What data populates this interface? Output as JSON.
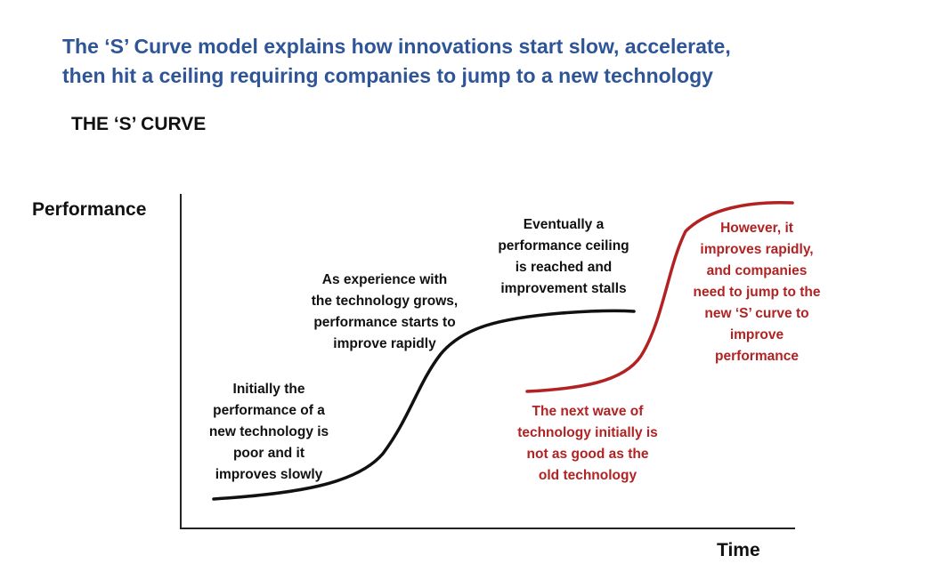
{
  "headline": {
    "lines": [
      "The ‘S’ Curve model explains how innovations start slow, accelerate,",
      "then hit a ceiling requiring companies to jump to a new technology"
    ]
  },
  "subtitle": "THE ‘S’ CURVE",
  "axes": {
    "y_label": "Performance",
    "x_label": "Time"
  },
  "colors": {
    "headline": "#2e5597",
    "old_curve": "#111111",
    "new_curve": "#b22222"
  },
  "annotations": {
    "initial": [
      "Initially the",
      "performance of a",
      "new technology is",
      "poor and it",
      "improves slowly"
    ],
    "growth": [
      "As experience with",
      "the technology grows,",
      "performance starts to",
      "improve rapidly"
    ],
    "ceiling": [
      "Eventually a",
      "performance ceiling",
      "is reached and",
      "improvement stalls"
    ],
    "next_wave": [
      "The next wave of",
      "technology initially is",
      "not as good as the",
      "old technology"
    ],
    "jump": [
      "However, it",
      "improves rapidly,",
      "and companies",
      "need to jump to the",
      "new ‘S’ curve to",
      "improve",
      "performance"
    ]
  }
}
